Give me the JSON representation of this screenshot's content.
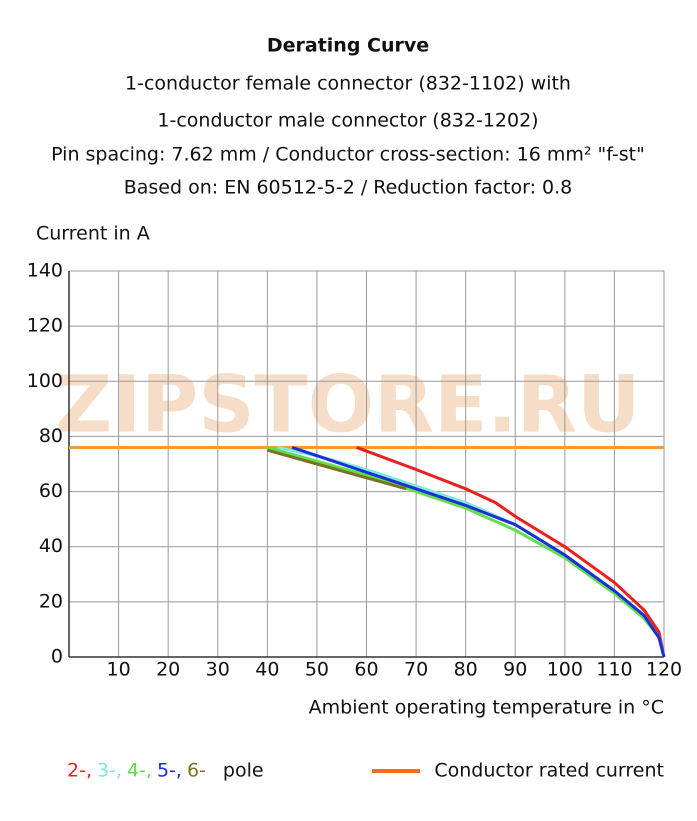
{
  "chart_data": {
    "type": "line",
    "title": "Derating Curve",
    "subtitle_lines": [
      "1-conductor female connector (832-1102) with",
      "1-conductor male connector (832-1202)",
      "Pin spacing: 7.62 mm / Conductor cross-section: 16 mm² \"f-st\"",
      "Based on: EN 60512-5-2 / Reduction factor: 0.8"
    ],
    "y_label": "Current in A",
    "x_label": "Ambient operating temperature in °C",
    "watermark": "ZIPSTORE.RU",
    "xlim": [
      0,
      120
    ],
    "xticks": [
      10,
      20,
      30,
      40,
      50,
      60,
      70,
      80,
      90,
      100,
      110,
      120
    ],
    "ylim": [
      0,
      140
    ],
    "yticks": [
      0,
      20,
      40,
      60,
      80,
      100,
      120,
      140
    ],
    "grid": true,
    "legend_suffix": "pole",
    "series": [
      {
        "name": "2-,",
        "color": "#e8211d",
        "x": [
          58,
          70,
          80,
          86,
          90,
          100,
          110,
          116,
          119,
          120
        ],
        "values": [
          76,
          68,
          61,
          56,
          51,
          40,
          27,
          17,
          9,
          0
        ]
      },
      {
        "name": "3-,",
        "color": "#7fe8d8",
        "x": [
          42,
          50,
          60,
          70,
          80,
          90,
          100,
          110,
          116,
          119,
          120
        ],
        "values": [
          76,
          73,
          68,
          62,
          56,
          48,
          37,
          24,
          15,
          7,
          0
        ]
      },
      {
        "name": "4-,",
        "color": "#5ee04a",
        "x": [
          40,
          50,
          60,
          70,
          80,
          90,
          100,
          110,
          116,
          119,
          120
        ],
        "values": [
          76,
          71,
          66,
          60,
          54,
          46,
          36,
          23,
          14,
          7,
          0
        ]
      },
      {
        "name": "5-,",
        "color": "#1a2fd6",
        "x": [
          45,
          50,
          60,
          70,
          80,
          90,
          100,
          110,
          116,
          119,
          120
        ],
        "values": [
          76,
          73,
          67,
          61,
          55,
          48,
          37,
          24,
          15,
          7,
          0
        ]
      },
      {
        "name": "6-",
        "color": "#7a7420",
        "x": [
          40,
          50,
          60,
          68
        ],
        "values": [
          75,
          70,
          65,
          61
        ]
      },
      {
        "name": "Conductor rated current",
        "color": "#f0a030",
        "legend_color": "#f07020",
        "x": [
          0,
          120
        ],
        "values": [
          76,
          76
        ]
      }
    ]
  }
}
